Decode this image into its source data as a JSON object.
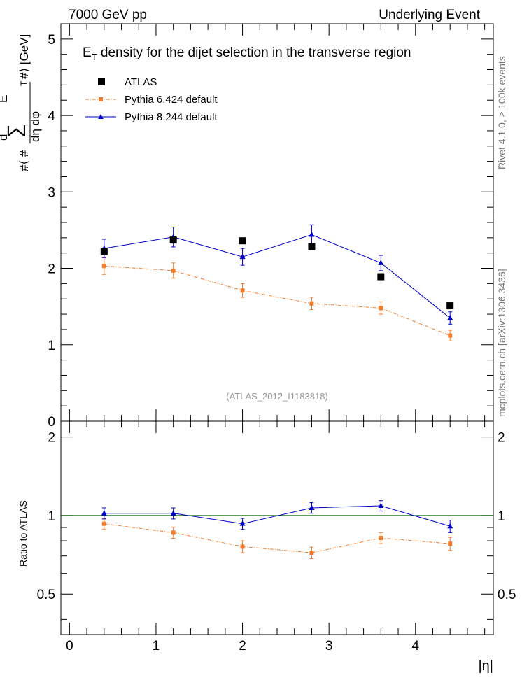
{
  "header": {
    "left": "7000 GeV pp",
    "right": "Underlying Event"
  },
  "side_labels": {
    "rivet": "Rivet 4.1.0, ≥ 100k events",
    "mcplots": "mcplots.cern.ch [arXiv:1306.3436]"
  },
  "watermark": "(ATLAS_2012_I1183818)",
  "chart_data": [
    {
      "type": "scatter",
      "title": "E_T density  for the dijet selection in the transverse region",
      "title_main": "E",
      "title_sub": "T",
      "title_rest": " density  for the dijet selection in the transverse region",
      "ylabel": "#⟨ d∑E_T / dη dφ #⟩ [GeV]",
      "ylabel_parts": {
        "d": "d",
        "sum": "∑",
        "e": "E",
        "t": "T",
        "hash_open": "#⟨ #",
        "hash_close": "#⟩ [GeV]",
        "denominator": "dη dφ"
      },
      "xlim": [
        -0.1,
        4.9
      ],
      "ylim": [
        0,
        5.2
      ],
      "x_ticks": [
        0,
        1,
        2,
        3,
        4
      ],
      "y_ticks": [
        0,
        1,
        2,
        3,
        4,
        5
      ],
      "y_tick_labels": [
        "0",
        "1",
        "2",
        "3",
        "4",
        "5"
      ],
      "legend_position": "top-left",
      "series": [
        {
          "name": "ATLAS",
          "color": "#000000",
          "marker": "square",
          "line": "none",
          "x": [
            0.4,
            1.2,
            2.0,
            2.8,
            3.6,
            4.4
          ],
          "y": [
            2.22,
            2.37,
            2.36,
            2.28,
            1.89,
            1.51
          ]
        },
        {
          "name": "Pythia 6.424 default",
          "color": "#f07d2e",
          "marker": "square",
          "line": "dashdot",
          "x": [
            0.4,
            1.2,
            2.0,
            2.8,
            3.6,
            4.4
          ],
          "y": [
            2.03,
            1.97,
            1.71,
            1.54,
            1.48,
            1.12
          ],
          "err": [
            0.11,
            0.1,
            0.09,
            0.08,
            0.08,
            0.07
          ]
        },
        {
          "name": "Pythia 8.244 default",
          "color": "#0000c8",
          "marker": "triangle",
          "line": "solid",
          "x": [
            0.4,
            1.2,
            2.0,
            2.8,
            3.6,
            4.4
          ],
          "y": [
            2.26,
            2.41,
            2.15,
            2.44,
            2.07,
            1.35
          ],
          "err": [
            0.12,
            0.13,
            0.11,
            0.13,
            0.1,
            0.08
          ]
        }
      ]
    },
    {
      "type": "scatter",
      "ylabel": "Ratio to ATLAS",
      "xlabel": "|η|",
      "xlim": [
        -0.1,
        4.9
      ],
      "ylim": [
        0.35,
        2.3
      ],
      "x_ticks": [
        0,
        1,
        2,
        3,
        4
      ],
      "x_tick_labels": [
        "0",
        "1",
        "2",
        "3",
        "4"
      ],
      "y_tick_values": [
        0.5,
        1,
        2
      ],
      "y_tick_labels": [
        "0.5",
        "1",
        "2"
      ],
      "reference_line": 1,
      "reference_color": "#006400",
      "series": [
        {
          "name": "Pythia 6.424 default",
          "color": "#f07d2e",
          "marker": "square",
          "line": "dashdot",
          "x": [
            0.4,
            1.2,
            2.0,
            2.8,
            3.6,
            4.4
          ],
          "y": [
            0.93,
            0.86,
            0.76,
            0.72,
            0.82,
            0.78
          ],
          "err": [
            0.045,
            0.042,
            0.04,
            0.036,
            0.04,
            0.045
          ]
        },
        {
          "name": "Pythia 8.244 default",
          "color": "#0000c8",
          "marker": "triangle",
          "line": "solid",
          "x": [
            0.4,
            1.2,
            2.0,
            2.8,
            3.6,
            4.4
          ],
          "y": [
            1.02,
            1.02,
            0.93,
            1.07,
            1.09,
            0.91
          ],
          "err": [
            0.05,
            0.05,
            0.045,
            0.05,
            0.05,
            0.05
          ]
        }
      ]
    }
  ]
}
